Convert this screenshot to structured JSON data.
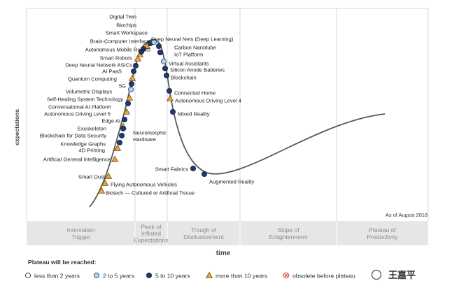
{
  "chart_data": {
    "type": "scatter",
    "title": "",
    "xlabel": "time",
    "ylabel": "expectations",
    "as_of": "As of August 2018",
    "phases": [
      {
        "name": "Innovation Trigger",
        "lines": [
          "Innovation",
          "Trigger"
        ]
      },
      {
        "name": "Peak of Inflated Expectations",
        "lines": [
          "Peak of",
          "Inflated",
          "Expectations"
        ]
      },
      {
        "name": "Trough of Disillusionment",
        "lines": [
          "Trough of",
          "Disillusionment"
        ]
      },
      {
        "name": "Slope of Enlightenment",
        "lines": [
          "Slope of",
          "Enlightenment"
        ]
      },
      {
        "name": "Plateau of Productivity",
        "lines": [
          "Plateau of",
          "Productivity"
        ]
      }
    ],
    "legend": {
      "title": "Plateau will be reached:",
      "items": [
        {
          "key": "lt2",
          "label": "less than 2 years",
          "marker": "circle-white"
        },
        {
          "key": "2to5",
          "label": "2 to 5 years",
          "marker": "circle-light-blue"
        },
        {
          "key": "5to10",
          "label": "5 to 10 years",
          "marker": "circle-dark-blue"
        },
        {
          "key": "gt10",
          "label": "more than 10 years",
          "marker": "triangle-orange"
        },
        {
          "key": "obs",
          "label": "obsolete before plateau",
          "marker": "x-red"
        }
      ]
    },
    "colors": {
      "dark_blue": "#1f3a6e",
      "light_blue": "#b4d0e6",
      "orange": "#f0a23a",
      "obsolete": "#d03a3a",
      "curve": "#5a5a5a",
      "phase_band": "#e6e6e6",
      "grid": "#cfcfcf"
    },
    "technologies": [
      {
        "name": "Digital Twin",
        "plateau": "5to10",
        "side": "left"
      },
      {
        "name": "Biochips",
        "plateau": "gt10",
        "side": "left"
      },
      {
        "name": "Smart Workspace",
        "plateau": "5to10",
        "side": "left"
      },
      {
        "name": "Brain-Computer Interface",
        "plateau": "gt10",
        "side": "left"
      },
      {
        "name": "Autonomous Mobile Robots",
        "plateau": "5to10",
        "side": "left"
      },
      {
        "name": "Smart Robots",
        "plateau": "gt10",
        "side": "left"
      },
      {
        "name": "Deep Neural Network ASICs",
        "plateau": "5to10",
        "side": "left"
      },
      {
        "name": "AI PaaS",
        "plateau": "5to10",
        "side": "left"
      },
      {
        "name": "Quantum Computing",
        "plateau": "gt10",
        "side": "left"
      },
      {
        "name": "5G",
        "plateau": "5to10",
        "side": "left"
      },
      {
        "name": "Volumetric Displays",
        "plateau": "2to5",
        "side": "left"
      },
      {
        "name": "Self-Healing System Technology",
        "plateau": "gt10",
        "side": "left"
      },
      {
        "name": "Conversational AI Platform",
        "plateau": "5to10",
        "side": "left"
      },
      {
        "name": "Autonomous Driving Level 5",
        "plateau": "gt10",
        "side": "left"
      },
      {
        "name": "Edge AI",
        "plateau": "5to10",
        "side": "left"
      },
      {
        "name": "Exoskeleton",
        "plateau": "gt10",
        "side": "left"
      },
      {
        "name": "Blockchain for Data Security",
        "plateau": "5to10",
        "side": "left"
      },
      {
        "name": "Knowledge Graphs",
        "plateau": "5to10",
        "side": "left"
      },
      {
        "name": "4D Printing",
        "plateau": "gt10",
        "side": "left"
      },
      {
        "name": "Artificial General Intelligence",
        "plateau": "gt10",
        "side": "left"
      },
      {
        "name": "Smart Dust",
        "plateau": "gt10",
        "side": "left"
      },
      {
        "name": "Flying Autonomous Vehicles",
        "plateau": "gt10",
        "side": "right"
      },
      {
        "name": "Biotech — Cultured or Artificial Tissue",
        "plateau": "gt10",
        "side": "right"
      },
      {
        "name": "Neuromorphic Hardware",
        "plateau": "5to10",
        "side": "right"
      },
      {
        "name": "Deep Neural Nets (Deep Learning)",
        "plateau": "2to5",
        "side": "right"
      },
      {
        "name": "Carbon Nanotube",
        "plateau": "5to10",
        "side": "right"
      },
      {
        "name": "IoT Platform",
        "plateau": "5to10",
        "side": "right"
      },
      {
        "name": "Virtual Assistants",
        "plateau": "2to5",
        "side": "right"
      },
      {
        "name": "Silicon Anode Batteries",
        "plateau": "5to10",
        "side": "right"
      },
      {
        "name": "Blockchain",
        "plateau": "5to10",
        "side": "right"
      },
      {
        "name": "Connected Home",
        "plateau": "5to10",
        "side": "right"
      },
      {
        "name": "Autonomous Driving Level 4",
        "plateau": "gt10",
        "side": "right"
      },
      {
        "name": "Mixed Reality",
        "plateau": "5to10",
        "side": "right"
      },
      {
        "name": "Smart Fabrics",
        "plateau": "5to10",
        "side": "left"
      },
      {
        "name": "Augmented Reality",
        "plateau": "5to10",
        "side": "right"
      }
    ]
  },
  "watermark": "王嘉平"
}
